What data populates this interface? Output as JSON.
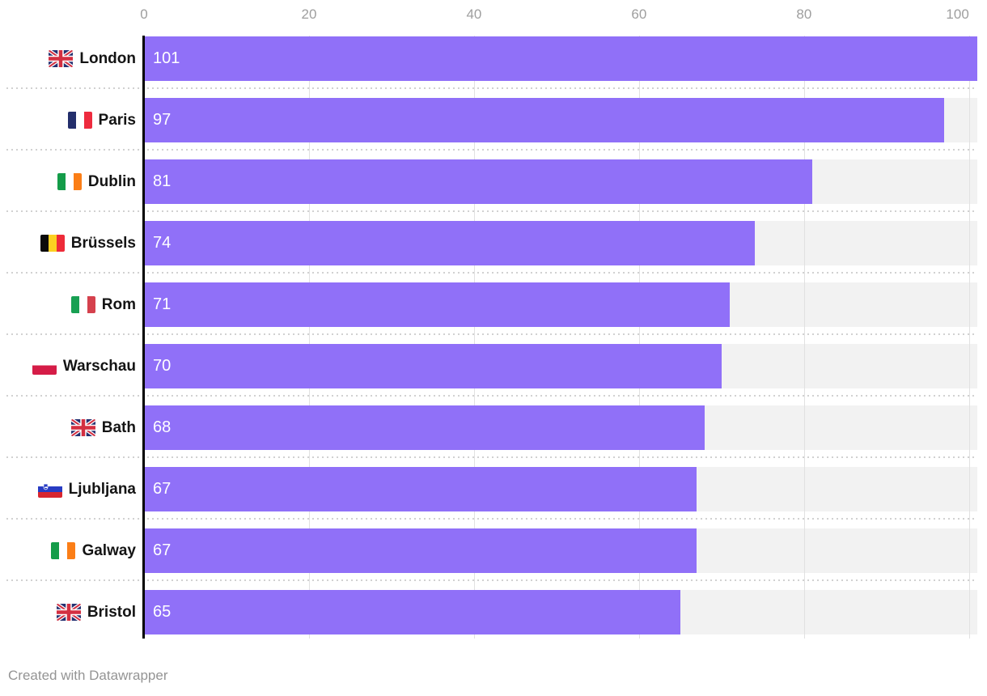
{
  "chart_data": {
    "type": "bar",
    "orientation": "horizontal",
    "categories": [
      "London",
      "Paris",
      "Dublin",
      "Brüssels",
      "Rom",
      "Warschau",
      "Bath",
      "Ljubljana",
      "Galway",
      "Bristol"
    ],
    "values": [
      101,
      97,
      81,
      74,
      71,
      70,
      68,
      67,
      67,
      65
    ],
    "flags": [
      "uk",
      "france",
      "ireland",
      "belgium",
      "italy",
      "poland",
      "uk",
      "slovenia",
      "ireland",
      "uk"
    ],
    "x_ticks": [
      0,
      20,
      40,
      60,
      80,
      100
    ],
    "xlim": [
      0,
      101
    ],
    "grid": true,
    "legend": "none",
    "xlabel": "",
    "ylabel": "",
    "title": "",
    "bar_color": "#9070f8",
    "track_color": "#f2f2f2",
    "gridline_color": "#e1e1e1",
    "value_label_color": "#ffffff"
  },
  "footer": {
    "credit": "Created with Datawrapper"
  }
}
